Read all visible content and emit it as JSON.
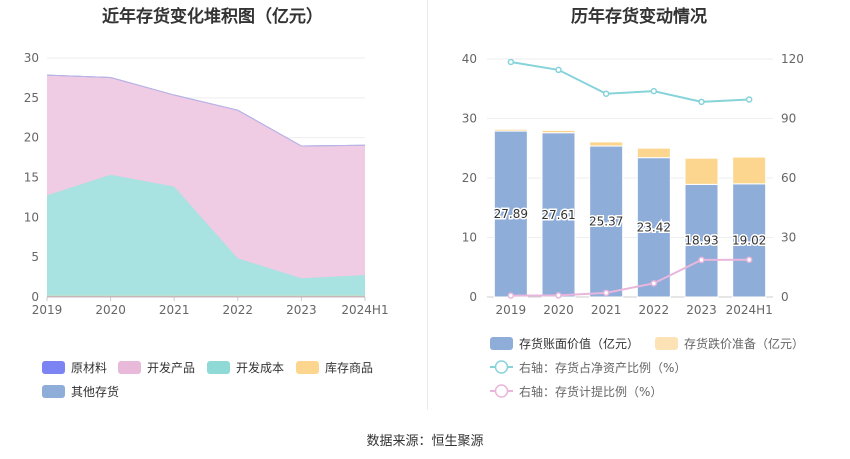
{
  "left_title": "近年存货变化堆积图（亿元）",
  "right_title": "历年存货变动情况",
  "source": "数据来源：恒生聚源",
  "chart_data": [
    {
      "type": "area",
      "stacked": true,
      "title": "近年存货变化堆积图（亿元）",
      "categories": [
        "2019",
        "2020",
        "2021",
        "2022",
        "2023",
        "2024H1"
      ],
      "y_ticks": [
        "0",
        "5",
        "10",
        "15",
        "20",
        "25",
        "30"
      ],
      "ylim": [
        0,
        30
      ],
      "series": [
        {
          "name": "原材料",
          "color": "#7c83f2",
          "values": [
            0.05,
            0.05,
            0.05,
            0.05,
            0.05,
            0.05
          ]
        },
        {
          "name": "库存商品",
          "color": "#fcd68e",
          "values": [
            0.1,
            0.1,
            0.1,
            0.1,
            0.1,
            0.1
          ]
        },
        {
          "name": "开发成本",
          "color": "#a8e2e1",
          "values": [
            12.6,
            15.2,
            13.7,
            4.7,
            2.2,
            2.6
          ]
        },
        {
          "name": "开发产品",
          "color": "#f0cbe4",
          "values": [
            15.1,
            12.2,
            11.5,
            18.6,
            16.6,
            16.3
          ]
        },
        {
          "name": "其他存货",
          "color": "#8fadd9",
          "values": [
            0,
            0,
            0,
            0,
            0,
            0
          ]
        }
      ],
      "legend": {
        "position": "bottom-left",
        "items": [
          {
            "label": "原材料",
            "color": "#7c83f2"
          },
          {
            "label": "开发产品",
            "color": "#e8b9d9"
          },
          {
            "label": "开发成本",
            "color": "#8fd9d6"
          },
          {
            "label": "库存商品",
            "color": "#fcd68e"
          },
          {
            "label": "其他存货",
            "color": "#8fadd9"
          }
        ]
      }
    },
    {
      "type": "bar",
      "stacked": true,
      "title": "历年存货变动情况",
      "categories": [
        "2019",
        "2020",
        "2021",
        "2022",
        "2023",
        "2024H1"
      ],
      "y_left_ticks": [
        "0",
        "10",
        "20",
        "30",
        "40"
      ],
      "y_right_ticks": [
        "0",
        "30",
        "60",
        "90",
        "120"
      ],
      "ylim_left": [
        0,
        40
      ],
      "ylim_right": [
        0,
        120
      ],
      "bars": [
        {
          "name": "存货账面价值（亿元）",
          "color": "#8fadd9",
          "values": [
            27.89,
            27.61,
            25.37,
            23.42,
            18.93,
            19.02
          ],
          "labels": [
            "27.89",
            "27.61",
            "25.37",
            "23.42",
            "18.93",
            "19.02"
          ]
        },
        {
          "name": "存货跌价准备（亿元）",
          "color": "#fcd68e",
          "values": [
            0.3,
            0.4,
            0.7,
            1.6,
            4.4,
            4.5
          ]
        }
      ],
      "lines": [
        {
          "name": "右轴：存货占净资产比例（%）",
          "color": "#86d3d9",
          "values": [
            118.5,
            114.5,
            102.5,
            103.8,
            98.4,
            99.6
          ]
        },
        {
          "name": "右轴：存货计提比例（%）",
          "color": "#e9b6dc",
          "values": [
            0.7,
            0.8,
            2.1,
            6.9,
            18.7,
            18.8
          ]
        }
      ],
      "legend": {
        "position": "bottom",
        "items": [
          {
            "label": "存货账面价值（亿元）",
            "color": "#8fadd9",
            "kind": "bar"
          },
          {
            "label": "存货跌价准备（亿元）",
            "color": "#fde2b5",
            "kind": "bar"
          },
          {
            "label": "右轴：存货占净资产比例（%）",
            "color": "#86d3d9",
            "kind": "line"
          },
          {
            "label": "右轴：存货计提比例（%）",
            "color": "#e9b6dc",
            "kind": "line"
          }
        ]
      }
    }
  ]
}
